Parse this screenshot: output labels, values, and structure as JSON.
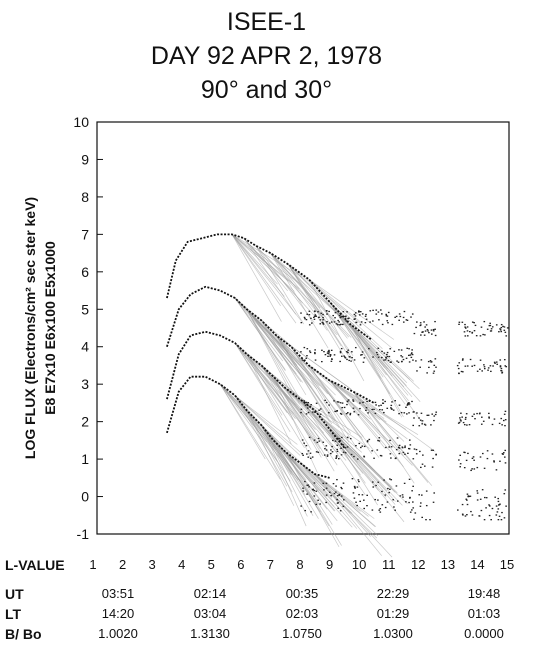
{
  "chart_data": {
    "type": "scatter",
    "title": [
      "ISEE-1",
      "DAY 92 APR 2, 1978",
      "90° and 30°"
    ],
    "ylabel": [
      "LOG FLUX (Electrons/cm² sec ster keV)",
      "E8   E7x10   E6x100   E5x1000"
    ],
    "ylim": [
      -1,
      10
    ],
    "yticks": [
      -1,
      0,
      1,
      2,
      3,
      4,
      5,
      6,
      7,
      8,
      9,
      10
    ],
    "xlabel": "L-VALUE",
    "xlim": [
      1,
      15
    ],
    "xticks": [
      "1",
      "2",
      "3",
      "4",
      "5",
      "6",
      "7",
      "8",
      "9",
      "10",
      "11",
      "12",
      "13",
      "14",
      "15"
    ],
    "grid": false,
    "series": [
      {
        "name": "E8",
        "x": [
          3.5,
          3.9,
          4.3,
          4.8,
          5.3,
          5.8,
          6.2,
          6.7,
          7.1,
          7.5,
          8.0,
          8.5,
          9.0
        ],
        "y": [
          1.7,
          2.8,
          3.2,
          3.2,
          3.0,
          2.7,
          2.3,
          1.9,
          1.5,
          1.2,
          0.9,
          0.6,
          0.5
        ]
      },
      {
        "name": "E7x10",
        "x": [
          3.5,
          3.9,
          4.3,
          4.8,
          5.3,
          5.8,
          6.2,
          6.7,
          7.1,
          7.5,
          8.0,
          8.5,
          9.0,
          9.5
        ],
        "y": [
          2.6,
          3.8,
          4.3,
          4.4,
          4.3,
          4.1,
          3.8,
          3.5,
          3.2,
          2.9,
          2.6,
          2.3,
          1.8,
          1.3
        ]
      },
      {
        "name": "E6x100",
        "x": [
          3.5,
          3.9,
          4.3,
          4.8,
          5.3,
          5.8,
          6.2,
          6.7,
          7.2,
          7.7,
          8.3,
          9.0,
          9.8,
          10.5
        ],
        "y": [
          4.0,
          5.0,
          5.4,
          5.6,
          5.5,
          5.3,
          5.0,
          4.7,
          4.3,
          4.0,
          3.5,
          3.1,
          2.8,
          2.5
        ]
      },
      {
        "name": "E5x1000",
        "x": [
          3.5,
          3.8,
          4.2,
          4.7,
          5.2,
          5.7,
          6.1,
          6.5,
          7.0,
          7.6,
          8.3,
          9.0,
          9.7,
          10.4
        ],
        "y": [
          5.3,
          6.3,
          6.8,
          6.9,
          7.0,
          7.0,
          6.9,
          6.7,
          6.5,
          6.2,
          5.8,
          5.2,
          4.6,
          4.2
        ]
      }
    ]
  },
  "table": {
    "rows": [
      {
        "label": "UT",
        "values": [
          "03:51",
          "02:14",
          "00:35",
          "22:29",
          "19:48"
        ]
      },
      {
        "label": "LT",
        "values": [
          "14:20",
          "03:04",
          "02:03",
          "01:29",
          "01:03"
        ]
      },
      {
        "label": "B/ Bo",
        "values": [
          "1.0020",
          "1.3130",
          "1.0750",
          "1.0300",
          "0.0000"
        ]
      }
    ]
  }
}
